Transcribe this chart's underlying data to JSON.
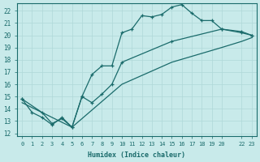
{
  "title": "",
  "xlabel": "Humidex (Indice chaleur)",
  "ylabel": "",
  "bg_color": "#c8eaea",
  "line_color": "#1a6b6b",
  "grid_color": "#afd8d8",
  "xlim": [
    -0.5,
    23.5
  ],
  "ylim": [
    11.8,
    22.6
  ],
  "xticks": [
    0,
    1,
    2,
    3,
    4,
    5,
    6,
    7,
    8,
    9,
    10,
    11,
    12,
    13,
    14,
    15,
    16,
    17,
    18,
    19,
    20,
    22,
    23
  ],
  "xtick_labels": [
    "0",
    "1",
    "2",
    "3",
    "4",
    "5",
    "6",
    "7",
    "8",
    "9",
    "10",
    "11",
    "12",
    "13",
    "14",
    "15",
    "16",
    "17",
    "18",
    "19",
    "20",
    "22",
    "23"
  ],
  "yticks": [
    12,
    13,
    14,
    15,
    16,
    17,
    18,
    19,
    20,
    21,
    22
  ],
  "line1_x": [
    0,
    1,
    2,
    3,
    4,
    5,
    6,
    7,
    8,
    9,
    10,
    11,
    12,
    13,
    14,
    15,
    16,
    17,
    18,
    19,
    20,
    22,
    23
  ],
  "line1_y": [
    14.8,
    13.7,
    13.3,
    12.7,
    13.3,
    12.5,
    15.0,
    16.8,
    17.5,
    17.5,
    20.2,
    20.5,
    21.6,
    21.5,
    21.7,
    22.3,
    22.5,
    21.8,
    21.2,
    21.2,
    20.5,
    20.2,
    20.0
  ],
  "line2_x": [
    0,
    2,
    3,
    4,
    5,
    6,
    7,
    8,
    9,
    10,
    15,
    20,
    22,
    23
  ],
  "line2_y": [
    14.8,
    13.7,
    12.8,
    13.2,
    12.5,
    15.0,
    14.5,
    15.2,
    16.0,
    17.8,
    19.5,
    20.5,
    20.3,
    20.0
  ],
  "line3_x": [
    0,
    5,
    10,
    15,
    20,
    22,
    23
  ],
  "line3_y": [
    14.5,
    12.5,
    16.0,
    17.8,
    19.0,
    19.5,
    19.8
  ]
}
